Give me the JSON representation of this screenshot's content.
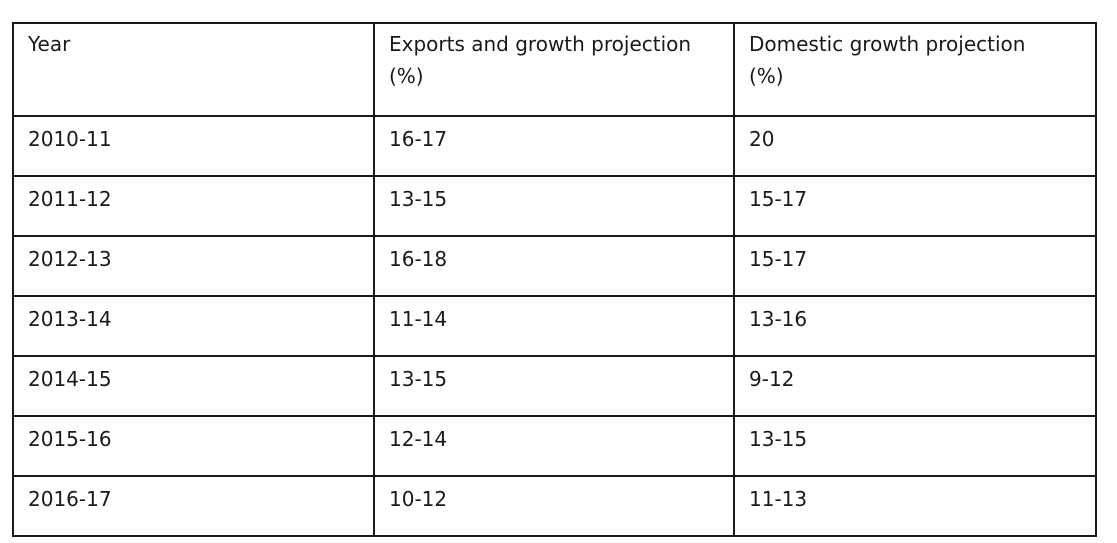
{
  "table": {
    "headers": [
      {
        "line1": "Year",
        "line2": ""
      },
      {
        "line1": "Exports and growth projection",
        "line2": "(%)"
      },
      {
        "line1": "Domestic growth projection",
        "line2": "(%)"
      }
    ],
    "rows": [
      [
        "2010-11",
        "16-17",
        "20"
      ],
      [
        "2011-12",
        "13-15",
        "15-17"
      ],
      [
        "2012-13",
        "16-18",
        "15-17"
      ],
      [
        "2013-14",
        "11-14",
        "13-16"
      ],
      [
        "2014-15",
        "13-15",
        "9-12"
      ],
      [
        "2015-16",
        "12-14",
        "13-15"
      ],
      [
        "2016-17",
        "10-12",
        "11-13"
      ]
    ]
  }
}
